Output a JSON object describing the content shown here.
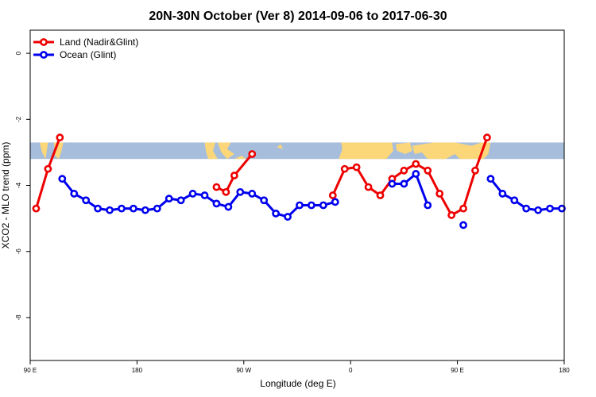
{
  "chart_data": {
    "type": "line",
    "title": "20N-30N October (Ver 8)   2014-09-06 to 2017-06-30",
    "xlabel": "Longitude (deg E)",
    "ylabel": "XCO2 - MLO trend (ppm)",
    "xlim": [
      90,
      540
    ],
    "ylim": [
      -9.3,
      0.7
    ],
    "x_ticks": [
      {
        "value": 90,
        "label": "90 E"
      },
      {
        "value": 180,
        "label": "180"
      },
      {
        "value": 270,
        "label": "90 W"
      },
      {
        "value": 360,
        "label": "0"
      },
      {
        "value": 450,
        "label": "90 E"
      },
      {
        "value": 540,
        "label": "180"
      }
    ],
    "y_ticks": [
      {
        "value": 0,
        "label": "0"
      },
      {
        "value": -2,
        "label": "-2"
      },
      {
        "value": -4,
        "label": "-4"
      },
      {
        "value": -6,
        "label": "-6"
      },
      {
        "value": -8,
        "label": "-8"
      }
    ],
    "legend_position": "top-left",
    "grid": false,
    "map_strip": {
      "y_top": -2.7,
      "y_bottom": -3.2,
      "ocean_color": "#a6bddb",
      "land_color": "#fbd779"
    },
    "series": [
      {
        "name": "Land (Nadir&Glint)",
        "color": "#ee0000",
        "segments": [
          [
            [
              95,
              -4.7
            ],
            [
              105,
              -3.5
            ],
            [
              115,
              -2.55
            ]
          ],
          [
            [
              247,
              -4.05
            ],
            [
              255,
              -4.2
            ],
            [
              262,
              -3.7
            ],
            [
              277,
              -3.05
            ]
          ],
          [
            [
              345,
              -4.3
            ],
            [
              355,
              -3.5
            ],
            [
              365,
              -3.45
            ],
            [
              375,
              -4.05
            ],
            [
              385,
              -4.3
            ],
            [
              395,
              -3.8
            ],
            [
              405,
              -3.55
            ],
            [
              415,
              -3.35
            ],
            [
              425,
              -3.55
            ],
            [
              435,
              -4.25
            ],
            [
              445,
              -4.9
            ],
            [
              455,
              -4.7
            ],
            [
              465,
              -3.55
            ],
            [
              475,
              -2.55
            ]
          ]
        ]
      },
      {
        "name": "Ocean (Glint)",
        "color": "#0000ee",
        "segments": [
          [
            [
              117,
              -3.8
            ],
            [
              127,
              -4.25
            ],
            [
              137,
              -4.45
            ],
            [
              147,
              -4.7
            ],
            [
              157,
              -4.75
            ],
            [
              167,
              -4.7
            ],
            [
              177,
              -4.7
            ],
            [
              187,
              -4.75
            ],
            [
              197,
              -4.7
            ],
            [
              207,
              -4.4
            ],
            [
              217,
              -4.45
            ],
            [
              227,
              -4.25
            ],
            [
              237,
              -4.3
            ],
            [
              247,
              -4.55
            ],
            [
              257,
              -4.65
            ],
            [
              267,
              -4.2
            ],
            [
              277,
              -4.25
            ],
            [
              287,
              -4.45
            ],
            [
              297,
              -4.85
            ],
            [
              307,
              -4.95
            ],
            [
              317,
              -4.6
            ],
            [
              327,
              -4.6
            ],
            [
              337,
              -4.6
            ],
            [
              347,
              -4.5
            ]
          ],
          [
            [
              395,
              -3.95
            ],
            [
              405,
              -3.95
            ],
            [
              415,
              -3.65
            ],
            [
              425,
              -4.6
            ]
          ],
          [
            [
              455,
              -5.2
            ]
          ],
          [
            [
              478,
              -3.8
            ],
            [
              488,
              -4.25
            ],
            [
              498,
              -4.45
            ],
            [
              508,
              -4.7
            ],
            [
              518,
              -4.75
            ],
            [
              528,
              -4.7
            ],
            [
              538,
              -4.7
            ]
          ]
        ]
      }
    ]
  }
}
